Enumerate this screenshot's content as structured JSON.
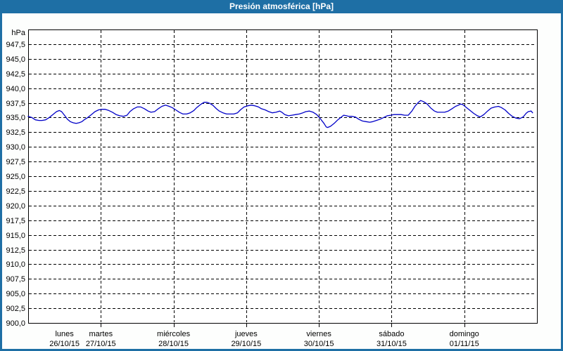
{
  "window": {
    "title": "Presión atmosférica [hPa]"
  },
  "colors": {
    "frame_blue": "#1e6fa5",
    "title_text": "#ffffff",
    "line_blue": "#0000c8",
    "grid_black": "#000000",
    "plot_background": "#fdfefd"
  },
  "chart_data": {
    "type": "line",
    "title": "Presión atmosférica [hPa]",
    "ylabel": "hPa",
    "xlabel": "",
    "ylim": [
      900,
      950
    ],
    "ytick_step": 2.5,
    "grid": true,
    "legend_position": "none",
    "yticks": [
      947.5,
      945.0,
      942.5,
      940.0,
      937.5,
      935.0,
      932.5,
      930.0,
      927.5,
      925.0,
      922.5,
      920.0,
      917.5,
      915.0,
      912.5,
      910.0,
      907.5,
      905.0,
      902.5,
      900.0
    ],
    "ytick_labels": [
      "947,5",
      "945,0",
      "942,5",
      "940,0",
      "937,5",
      "935,0",
      "932,5",
      "930,0",
      "927,5",
      "925,0",
      "922,5",
      "920,0",
      "917,5",
      "915,0",
      "912,5",
      "910,0",
      "907,5",
      "905,0",
      "902,5",
      "900,0"
    ],
    "x_days": [
      {
        "name": "lunes",
        "date": "26/10/15"
      },
      {
        "name": "martes",
        "date": "27/10/15"
      },
      {
        "name": "miércoles",
        "date": "28/10/15"
      },
      {
        "name": "jueves",
        "date": "29/10/15"
      },
      {
        "name": "viernes",
        "date": "30/10/15"
      },
      {
        "name": "sábado",
        "date": "31/10/15"
      },
      {
        "name": "domingo",
        "date": "01/11/15"
      }
    ],
    "series": [
      {
        "name": "Presión atmosférica",
        "unit": "hPa",
        "color": "#0000c8",
        "x_unit": "days since lunes 26/10/15 00:00",
        "points": [
          [
            0.0,
            935.2
          ],
          [
            0.05,
            935.0
          ],
          [
            0.1,
            934.6
          ],
          [
            0.15,
            934.5
          ],
          [
            0.19,
            934.5
          ],
          [
            0.24,
            934.6
          ],
          [
            0.29,
            935.0
          ],
          [
            0.34,
            935.5
          ],
          [
            0.39,
            936.0
          ],
          [
            0.43,
            936.2
          ],
          [
            0.46,
            936.0
          ],
          [
            0.5,
            935.4
          ],
          [
            0.54,
            934.7
          ],
          [
            0.58,
            934.3
          ],
          [
            0.62,
            934.1
          ],
          [
            0.66,
            934.0
          ],
          [
            0.7,
            934.1
          ],
          [
            0.74,
            934.3
          ],
          [
            0.77,
            934.6
          ],
          [
            0.82,
            935.0
          ],
          [
            0.87,
            935.5
          ],
          [
            0.92,
            936.0
          ],
          [
            0.97,
            936.3
          ],
          [
            1.02,
            936.4
          ],
          [
            1.06,
            936.4
          ],
          [
            1.11,
            936.2
          ],
          [
            1.16,
            935.9
          ],
          [
            1.21,
            935.5
          ],
          [
            1.26,
            935.3
          ],
          [
            1.31,
            935.2
          ],
          [
            1.36,
            935.4
          ],
          [
            1.4,
            936.0
          ],
          [
            1.45,
            936.5
          ],
          [
            1.5,
            936.8
          ],
          [
            1.55,
            936.8
          ],
          [
            1.6,
            936.5
          ],
          [
            1.65,
            936.1
          ],
          [
            1.69,
            935.9
          ],
          [
            1.74,
            936.0
          ],
          [
            1.79,
            936.5
          ],
          [
            1.84,
            936.9
          ],
          [
            1.89,
            937.1
          ],
          [
            1.94,
            936.9
          ],
          [
            1.98,
            936.7
          ],
          [
            2.03,
            936.3
          ],
          [
            2.08,
            935.9
          ],
          [
            2.13,
            935.6
          ],
          [
            2.18,
            935.6
          ],
          [
            2.23,
            935.8
          ],
          [
            2.28,
            936.2
          ],
          [
            2.32,
            936.7
          ],
          [
            2.37,
            937.2
          ],
          [
            2.42,
            937.6
          ],
          [
            2.46,
            937.6
          ],
          [
            2.5,
            937.4
          ],
          [
            2.54,
            937.1
          ],
          [
            2.59,
            936.5
          ],
          [
            2.63,
            936.1
          ],
          [
            2.68,
            935.8
          ],
          [
            2.73,
            935.6
          ],
          [
            2.78,
            935.6
          ],
          [
            2.83,
            935.6
          ],
          [
            2.88,
            935.8
          ],
          [
            2.92,
            936.3
          ],
          [
            2.97,
            936.8
          ],
          [
            3.02,
            937.0
          ],
          [
            3.07,
            937.1
          ],
          [
            3.12,
            937.0
          ],
          [
            3.17,
            936.8
          ],
          [
            3.21,
            936.5
          ],
          [
            3.26,
            936.3
          ],
          [
            3.31,
            936.0
          ],
          [
            3.36,
            935.8
          ],
          [
            3.41,
            935.9
          ],
          [
            3.46,
            936.1
          ],
          [
            3.49,
            935.9
          ],
          [
            3.53,
            935.5
          ],
          [
            3.58,
            935.3
          ],
          [
            3.63,
            935.4
          ],
          [
            3.68,
            935.5
          ],
          [
            3.73,
            935.6
          ],
          [
            3.78,
            935.8
          ],
          [
            3.82,
            936.0
          ],
          [
            3.87,
            936.1
          ],
          [
            3.92,
            935.9
          ],
          [
            3.97,
            935.5
          ],
          [
            4.02,
            934.8
          ],
          [
            4.07,
            934.0
          ],
          [
            4.1,
            933.4
          ],
          [
            4.12,
            933.3
          ],
          [
            4.16,
            933.5
          ],
          [
            4.21,
            934.0
          ],
          [
            4.26,
            934.6
          ],
          [
            4.31,
            935.1
          ],
          [
            4.34,
            935.4
          ],
          [
            4.38,
            935.3
          ],
          [
            4.41,
            935.2
          ],
          [
            4.45,
            935.2
          ],
          [
            4.5,
            935.1
          ],
          [
            4.55,
            934.7
          ],
          [
            4.6,
            934.4
          ],
          [
            4.65,
            934.3
          ],
          [
            4.7,
            934.2
          ],
          [
            4.74,
            934.3
          ],
          [
            4.79,
            934.5
          ],
          [
            4.84,
            934.7
          ],
          [
            4.89,
            935.0
          ],
          [
            4.94,
            935.3
          ],
          [
            4.99,
            935.4
          ],
          [
            5.03,
            935.5
          ],
          [
            5.08,
            935.5
          ],
          [
            5.13,
            935.5
          ],
          [
            5.18,
            935.4
          ],
          [
            5.23,
            935.4
          ],
          [
            5.28,
            936.1
          ],
          [
            5.32,
            936.9
          ],
          [
            5.37,
            937.6
          ],
          [
            5.4,
            937.9
          ],
          [
            5.44,
            937.7
          ],
          [
            5.49,
            937.3
          ],
          [
            5.54,
            936.6
          ],
          [
            5.59,
            936.1
          ],
          [
            5.63,
            935.9
          ],
          [
            5.68,
            935.9
          ],
          [
            5.73,
            935.9
          ],
          [
            5.78,
            936.1
          ],
          [
            5.83,
            936.5
          ],
          [
            5.88,
            936.9
          ],
          [
            5.92,
            937.1
          ],
          [
            5.95,
            937.3
          ],
          [
            5.98,
            937.2
          ],
          [
            6.03,
            936.7
          ],
          [
            6.08,
            936.2
          ],
          [
            6.13,
            935.7
          ],
          [
            6.18,
            935.3
          ],
          [
            6.22,
            935.1
          ],
          [
            6.27,
            935.5
          ],
          [
            6.32,
            936.1
          ],
          [
            6.37,
            936.6
          ],
          [
            6.42,
            936.8
          ],
          [
            6.47,
            936.9
          ],
          [
            6.51,
            936.7
          ],
          [
            6.56,
            936.3
          ],
          [
            6.61,
            935.7
          ],
          [
            6.66,
            935.2
          ],
          [
            6.71,
            934.9
          ],
          [
            6.76,
            934.8
          ],
          [
            6.81,
            935.1
          ],
          [
            6.85,
            935.7
          ],
          [
            6.88,
            936.0
          ],
          [
            6.92,
            936.1
          ],
          [
            6.94,
            935.8
          ]
        ]
      }
    ]
  }
}
